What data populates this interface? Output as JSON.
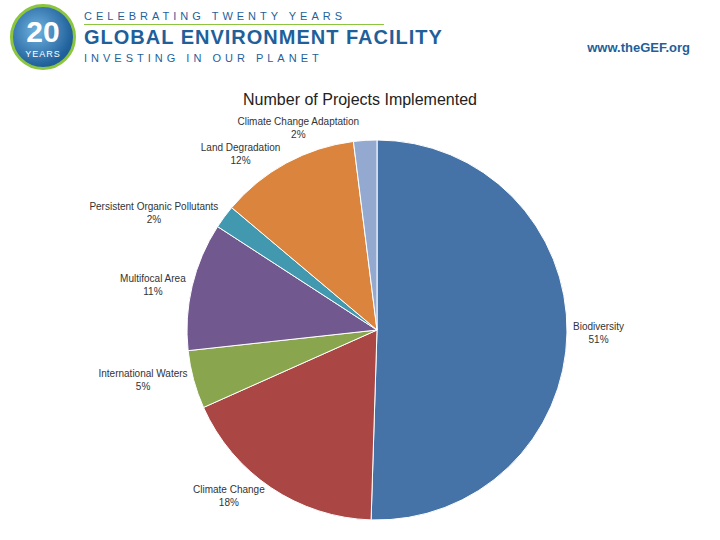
{
  "header": {
    "logo_number": "20",
    "logo_text": "YEARS",
    "tagline": "CELEBRATING TWENTY YEARS",
    "name": "GLOBAL ENVIRONMENT FACILITY",
    "motto": "INVESTING IN OUR PLANET",
    "url": "www.theGEF.org"
  },
  "chart_data": {
    "type": "pie",
    "title": "Number of Projects Implemented",
    "categories": [
      "Biodiversity",
      "Climate Change",
      "International Waters",
      "Multifocal Area",
      "Persistent Organic Pollutants",
      "Land Degradation",
      "Climate Change Adaptation"
    ],
    "values": [
      51,
      18,
      5,
      11,
      2,
      12,
      2
    ],
    "value_labels": [
      "51%",
      "18%",
      "5%",
      "11%",
      "2%",
      "12%",
      "2%"
    ],
    "colors": [
      "#4572a7",
      "#aa4643",
      "#89a54e",
      "#71588f",
      "#4198af",
      "#db843d",
      "#93a9cf"
    ],
    "data_labels": true
  }
}
